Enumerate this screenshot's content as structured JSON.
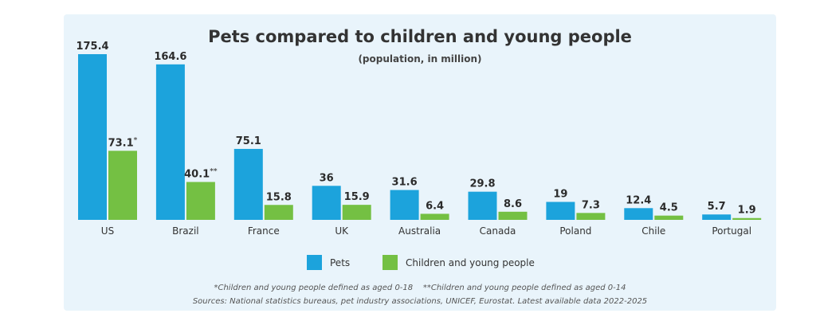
{
  "chart_data": {
    "type": "bar",
    "title": "Pets compared to children and young people",
    "subtitle": "(population, in million)",
    "categories": [
      "US",
      "Brazil",
      "France",
      "UK",
      "Australia",
      "Canada",
      "Poland",
      "Chile",
      "Portugal"
    ],
    "series": [
      {
        "name": "Pets",
        "color": "#1ca3dc",
        "values": [
          175.4,
          164.6,
          75.1,
          36,
          31.6,
          29.8,
          19,
          12.4,
          5.7
        ],
        "labels": [
          "175.4",
          "164.6",
          "75.1",
          "36",
          "31.6",
          "29.8",
          "19",
          "12.4",
          "5.7"
        ],
        "marks": [
          "",
          "",
          "",
          "",
          "",
          "",
          "",
          "",
          ""
        ]
      },
      {
        "name": "Children and young people",
        "color": "#74c043",
        "values": [
          73.1,
          40.1,
          15.8,
          15.9,
          6.4,
          8.6,
          7.3,
          4.5,
          1.9
        ],
        "labels": [
          "73.1",
          "40.1",
          "15.8",
          "15.9",
          "6.4",
          "8.6",
          "7.3",
          "4.5",
          "1.9"
        ],
        "marks": [
          "*",
          "**",
          "",
          "",
          "",
          "",
          "",
          "",
          ""
        ]
      }
    ],
    "ylim": [
      0,
      175.4
    ],
    "grid": false,
    "legend_position": "bottom-center",
    "footnote": "*Children and young people defined as aged 0-18    **Children and young people defined as aged 0-14",
    "source": "Sources: National statistics bureaus, pet industry associations, UNICEF, Eurostat. Latest available data 2022-2025"
  }
}
